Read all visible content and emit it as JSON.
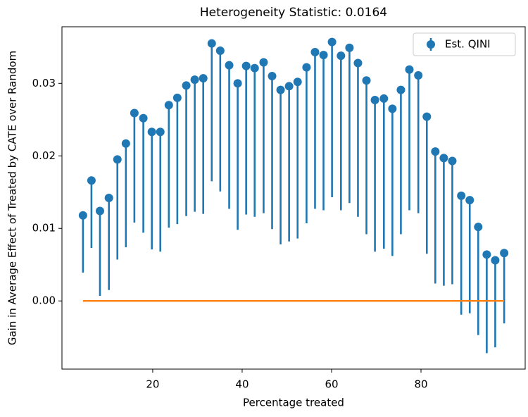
{
  "chart_data": {
    "type": "errorbar",
    "title": "Heterogeneity Statistic: 0.0164",
    "xlabel": "Percentage treated",
    "ylabel": "Gain in Average Effect of Treated by CATE over Random",
    "x": [
      4.4,
      6.3,
      8.2,
      10.2,
      12.1,
      14.0,
      15.9,
      17.9,
      19.8,
      21.7,
      23.6,
      25.5,
      27.5,
      29.4,
      31.3,
      33.2,
      35.1,
      37.1,
      39.0,
      40.9,
      42.8,
      44.8,
      46.7,
      48.6,
      50.5,
      52.4,
      54.4,
      56.3,
      58.2,
      60.1,
      62.1,
      64.0,
      65.9,
      67.8,
      69.7,
      71.7,
      73.6,
      75.5,
      77.4,
      79.4,
      81.3,
      83.2,
      85.1,
      87.0,
      89.0,
      90.9,
      92.8,
      94.7,
      96.6,
      98.6
    ],
    "series": [
      {
        "name": "Est. QINI",
        "color": "#1f77b4",
        "values": [
          0.0118,
          0.0166,
          0.0124,
          0.0142,
          0.0195,
          0.0217,
          0.0259,
          0.0252,
          0.0233,
          0.0233,
          0.027,
          0.028,
          0.0297,
          0.0305,
          0.0307,
          0.0355,
          0.0345,
          0.0325,
          0.03,
          0.0324,
          0.0321,
          0.0329,
          0.031,
          0.0291,
          0.0296,
          0.0302,
          0.0322,
          0.0343,
          0.0339,
          0.0357,
          0.0338,
          0.0349,
          0.0328,
          0.0304,
          0.0277,
          0.0279,
          0.0265,
          0.0291,
          0.0319,
          0.0311,
          0.0254,
          0.0206,
          0.0197,
          0.0193,
          0.0145,
          0.0139,
          0.0102,
          0.0064,
          0.0056,
          0.0066
        ],
        "errors": [
          0.0079,
          0.0093,
          0.0117,
          0.0127,
          0.0138,
          0.0143,
          0.0151,
          0.0158,
          0.0162,
          0.0165,
          0.0169,
          0.0174,
          0.018,
          0.0182,
          0.0187,
          0.019,
          0.0194,
          0.0198,
          0.0202,
          0.0205,
          0.0205,
          0.0208,
          0.0211,
          0.0213,
          0.0214,
          0.0216,
          0.0215,
          0.0216,
          0.0214,
          0.0214,
          0.0213,
          0.0214,
          0.0212,
          0.0212,
          0.0209,
          0.0207,
          0.0203,
          0.0199,
          0.0194,
          0.019,
          0.0189,
          0.0182,
          0.0176,
          0.017,
          0.0164,
          0.0156,
          0.0149,
          0.0136,
          0.012,
          0.0097
        ]
      }
    ],
    "baseline": {
      "x": [
        4.4,
        98.6
      ],
      "values": [
        0,
        0
      ],
      "color": "#ff7f0e"
    },
    "xlim": [
      -0.3,
      103.3
    ],
    "ylim": [
      -0.0094,
      0.0378
    ],
    "xticks": [
      20,
      40,
      60,
      80
    ],
    "yticks": [
      {
        "value": 0,
        "label": "0.00"
      },
      {
        "value": 0.01,
        "label": "0.01"
      },
      {
        "value": 0.02,
        "label": "0.02"
      },
      {
        "value": 0.03,
        "label": "0.03"
      }
    ],
    "legend": "upper right"
  }
}
